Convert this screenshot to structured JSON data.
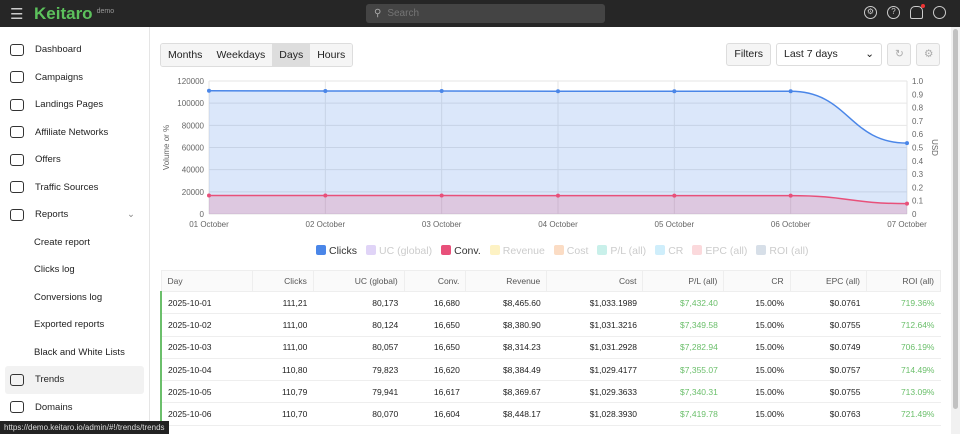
{
  "header": {
    "app_name": "Keitaro",
    "badge": "demo",
    "search_placeholder": "Search",
    "icons": [
      "settings-icon",
      "help-icon",
      "bell-icon",
      "user-icon"
    ]
  },
  "sidebar": {
    "items": [
      {
        "label": "Dashboard",
        "icon": "dashboard-icon"
      },
      {
        "label": "Campaigns",
        "icon": "target-icon"
      },
      {
        "label": "Landings Pages",
        "icon": "page-icon"
      },
      {
        "label": "Affiliate Networks",
        "icon": "users-icon"
      },
      {
        "label": "Offers",
        "icon": "tag-icon"
      },
      {
        "label": "Traffic Sources",
        "icon": "route-icon"
      },
      {
        "label": "Reports",
        "icon": "report-icon",
        "expanded": true
      }
    ],
    "subitems": [
      "Create report",
      "Clicks log",
      "Conversions log",
      "Exported reports",
      "Black and White Lists"
    ],
    "bottom": [
      {
        "label": "Trends",
        "icon": "trend-icon",
        "active": true
      },
      {
        "label": "Domains",
        "icon": "globe-icon"
      }
    ]
  },
  "toolbar": {
    "granularity": [
      "Months",
      "Weekdays",
      "Days",
      "Hours"
    ],
    "selected": "Days",
    "filters": "Filters",
    "range": "Last 7 days"
  },
  "chart_data": {
    "type": "area",
    "x": [
      "01 October",
      "02 October",
      "03 October",
      "04 October",
      "05 October",
      "06 October",
      "07 October"
    ],
    "ylabel": "Volume or %",
    "y2label": "USD",
    "ylim": [
      0,
      120000
    ],
    "y_ticks": [
      0,
      20000,
      40000,
      60000,
      80000,
      100000,
      120000
    ],
    "y2lim": [
      0,
      1.0
    ],
    "y2_ticks": [
      "0",
      "0.1",
      "0.2",
      "0.3",
      "0.4",
      "0.5",
      "0.6",
      "0.7",
      "0.8",
      "0.9",
      "1.0"
    ],
    "grid": true,
    "legend": "bottom",
    "series": [
      {
        "name": "Clicks",
        "color": "#4a86e8",
        "values": [
          111210,
          111000,
          111000,
          110800,
          110790,
          110700,
          64000
        ],
        "visible": true
      },
      {
        "name": "UC (global)",
        "color": "#e0d4f7",
        "visible": false
      },
      {
        "name": "Conv.",
        "color": "#e8507a",
        "values": [
          16680,
          16650,
          16650,
          16620,
          16617,
          16604,
          9400
        ],
        "visible": true
      },
      {
        "name": "Revenue",
        "color": "#fdf2c4",
        "visible": false
      },
      {
        "name": "Cost",
        "color": "#fbdcc4",
        "visible": false
      },
      {
        "name": "P/L (all)",
        "color": "#c9f0ea",
        "visible": false
      },
      {
        "name": "CR",
        "color": "#cfeefb",
        "visible": false
      },
      {
        "name": "EPC (all)",
        "color": "#fbd9dc",
        "visible": false
      },
      {
        "name": "ROI (all)",
        "color": "#d7dfe8",
        "visible": false
      }
    ]
  },
  "table": {
    "columns": [
      "Day",
      "Clicks",
      "UC (global)",
      "Conv.",
      "Revenue",
      "Cost",
      "P/L (all)",
      "CR",
      "EPC (all)",
      "ROI (all)"
    ],
    "rows": [
      [
        "2025-10-01",
        "111,21",
        "80,173",
        "16,680",
        "$8,465.60",
        "$1,033.1989",
        "$7,432.40",
        "15.00%",
        "$0.0761",
        "719.36%"
      ],
      [
        "2025-10-02",
        "111,00",
        "80,124",
        "16,650",
        "$8,380.90",
        "$1,031.3216",
        "$7,349.58",
        "15.00%",
        "$0.0755",
        "712.64%"
      ],
      [
        "2025-10-03",
        "111,00",
        "80,057",
        "16,650",
        "$8,314.23",
        "$1,031.2928",
        "$7,282.94",
        "15.00%",
        "$0.0749",
        "706.19%"
      ],
      [
        "2025-10-04",
        "110,80",
        "79,823",
        "16,620",
        "$8,384.49",
        "$1,029.4177",
        "$7,355.07",
        "15.00%",
        "$0.0757",
        "714.49%"
      ],
      [
        "2025-10-05",
        "110,79",
        "79,941",
        "16,617",
        "$8,369.67",
        "$1,029.3633",
        "$7,340.31",
        "15.00%",
        "$0.0755",
        "713.09%"
      ],
      [
        "2025-10-06",
        "110,70",
        "80,070",
        "16,604",
        "$8,448.17",
        "$1,028.3930",
        "$7,419.78",
        "15.00%",
        "$0.0763",
        "721.49%"
      ]
    ]
  },
  "status_url": "https://demo.keitaro.io/admin/#!/trends/trends"
}
